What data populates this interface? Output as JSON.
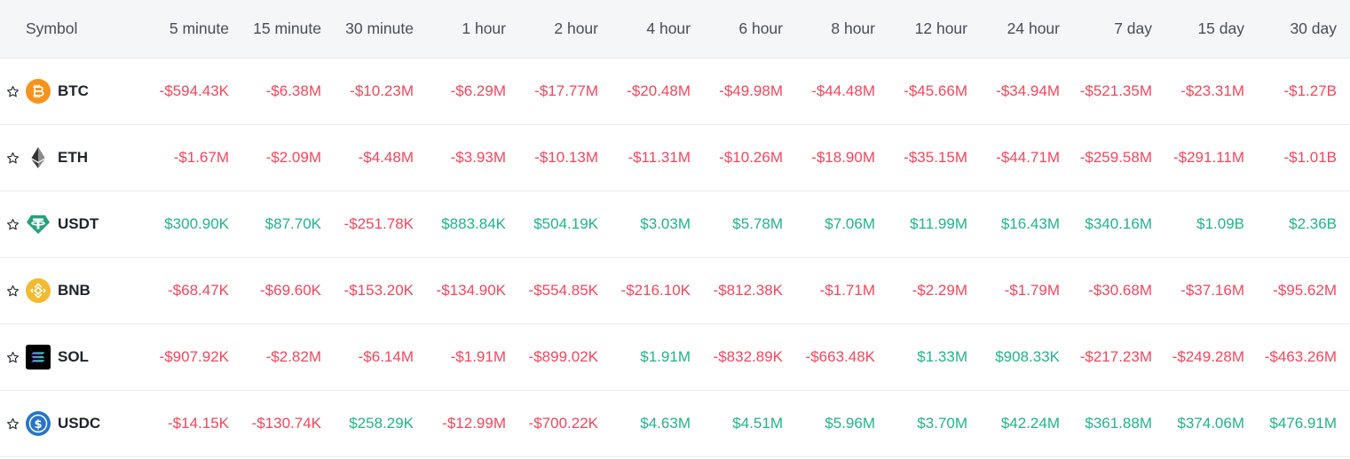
{
  "header": {
    "symbol_label": "Symbol",
    "columns": [
      "5 minute",
      "15 minute",
      "30 minute",
      "1 hour",
      "2 hour",
      "4 hour",
      "6 hour",
      "8 hour",
      "12 hour",
      "24 hour",
      "7 day",
      "15 day",
      "30 day"
    ]
  },
  "colors": {
    "negative": "#f6465d",
    "positive": "#21b48a",
    "header_bg": "#f5f6f8"
  },
  "rows": [
    {
      "symbol": "BTC",
      "icon": "bitcoin-icon",
      "values": [
        "-$594.43K",
        "-$6.38M",
        "-$10.23M",
        "-$6.29M",
        "-$17.77M",
        "-$20.48M",
        "-$49.98M",
        "-$44.48M",
        "-$45.66M",
        "-$34.94M",
        "-$521.35M",
        "-$23.31M",
        "-$1.27B"
      ]
    },
    {
      "symbol": "ETH",
      "icon": "ethereum-icon",
      "values": [
        "-$1.67M",
        "-$2.09M",
        "-$4.48M",
        "-$3.93M",
        "-$10.13M",
        "-$11.31M",
        "-$10.26M",
        "-$18.90M",
        "-$35.15M",
        "-$44.71M",
        "-$259.58M",
        "-$291.11M",
        "-$1.01B"
      ]
    },
    {
      "symbol": "USDT",
      "icon": "tether-icon",
      "values": [
        "$300.90K",
        "$87.70K",
        "-$251.78K",
        "$883.84K",
        "$504.19K",
        "$3.03M",
        "$5.78M",
        "$7.06M",
        "$11.99M",
        "$16.43M",
        "$340.16M",
        "$1.09B",
        "$2.36B"
      ]
    },
    {
      "symbol": "BNB",
      "icon": "bnb-icon",
      "values": [
        "-$68.47K",
        "-$69.60K",
        "-$153.20K",
        "-$134.90K",
        "-$554.85K",
        "-$216.10K",
        "-$812.38K",
        "-$1.71M",
        "-$2.29M",
        "-$1.79M",
        "-$30.68M",
        "-$37.16M",
        "-$95.62M"
      ]
    },
    {
      "symbol": "SOL",
      "icon": "solana-icon",
      "values": [
        "-$907.92K",
        "-$2.82M",
        "-$6.14M",
        "-$1.91M",
        "-$899.02K",
        "$1.91M",
        "-$832.89K",
        "-$663.48K",
        "$1.33M",
        "$908.33K",
        "-$217.23M",
        "-$249.28M",
        "-$463.26M"
      ]
    },
    {
      "symbol": "USDC",
      "icon": "usdc-icon",
      "values": [
        "-$14.15K",
        "-$130.74K",
        "$258.29K",
        "-$12.99M",
        "-$700.22K",
        "$4.63M",
        "$4.51M",
        "$5.96M",
        "$3.70M",
        "$42.24M",
        "$361.88M",
        "$374.06M",
        "$476.91M"
      ]
    }
  ]
}
